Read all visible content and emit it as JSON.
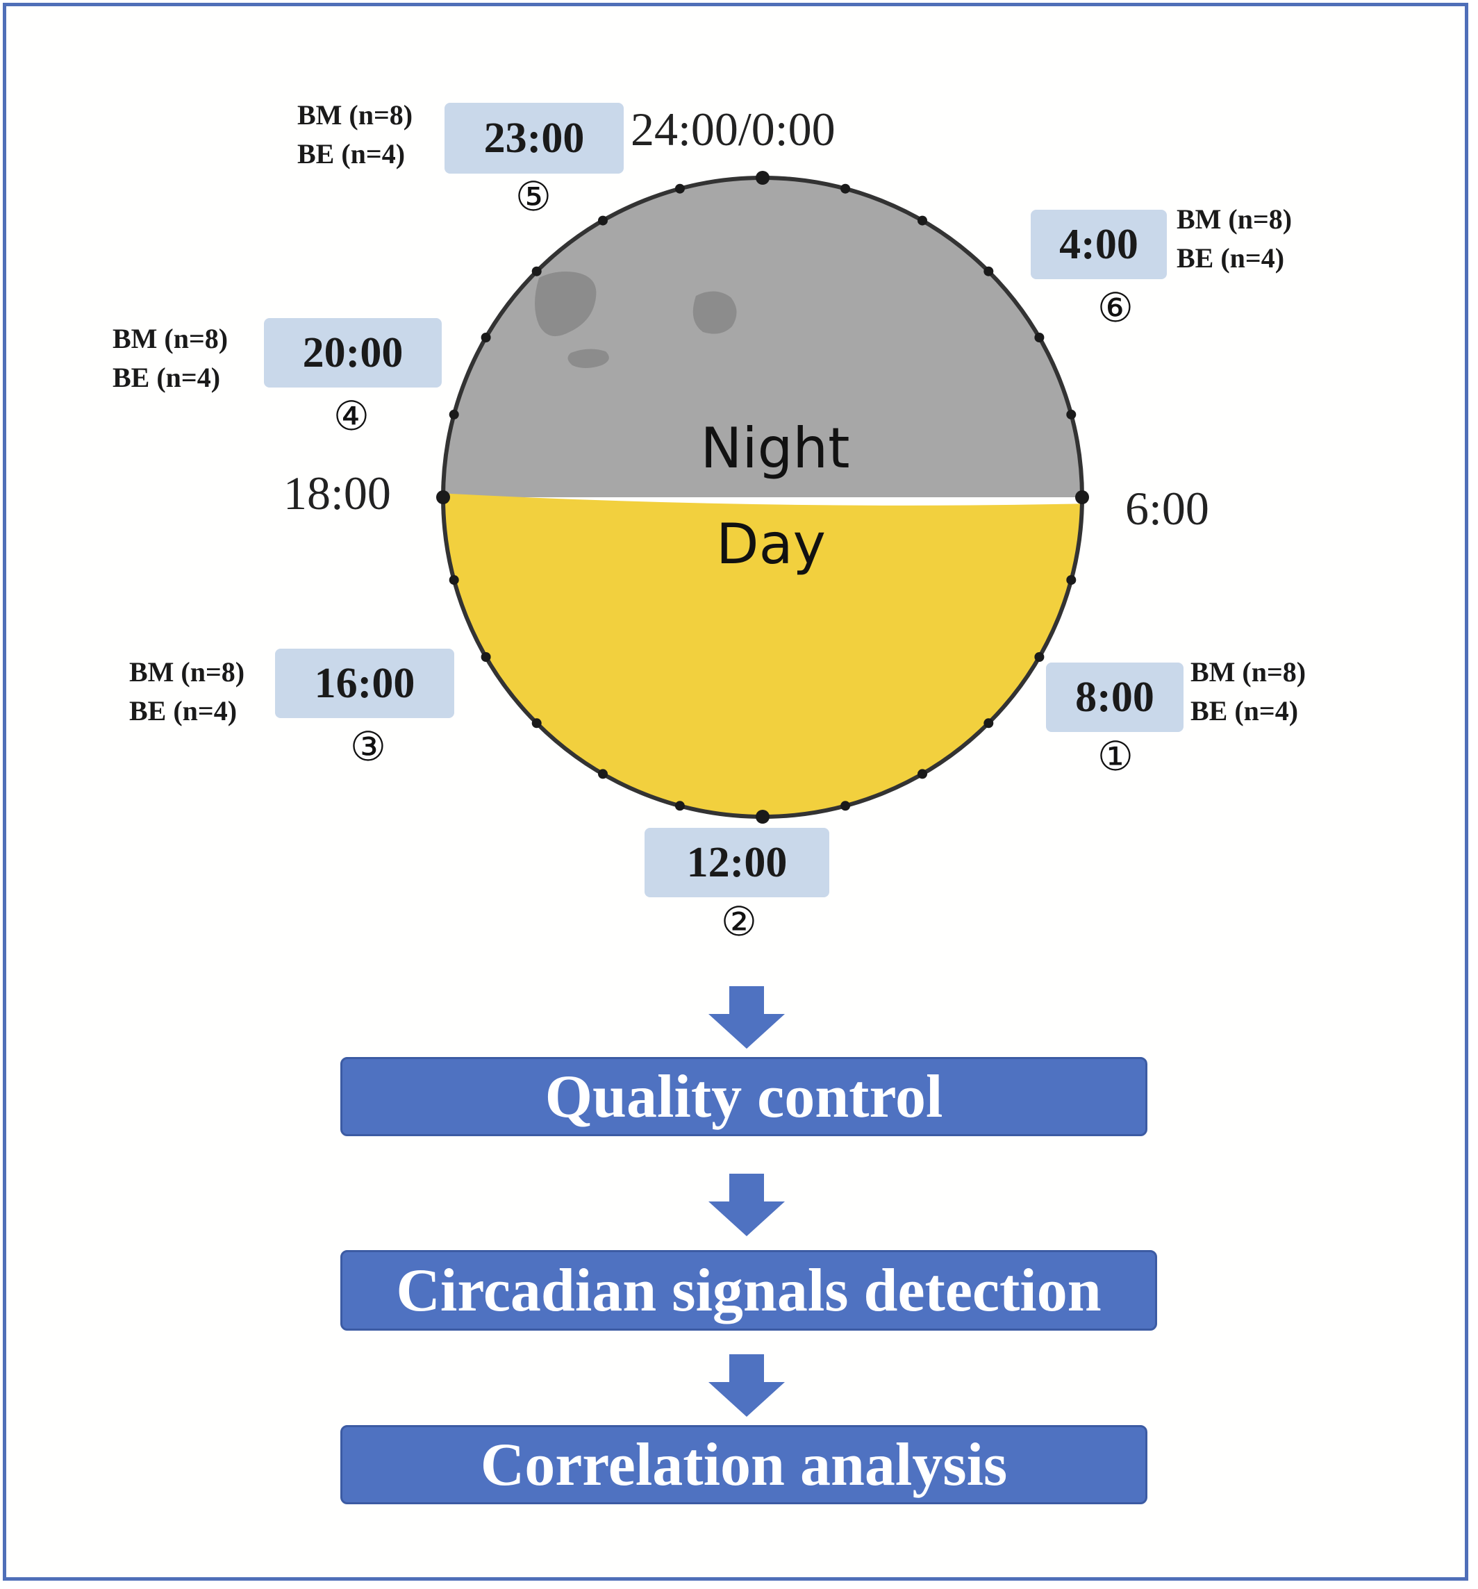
{
  "clock": {
    "night_label": "Night",
    "day_label": "Day",
    "axis_labels": {
      "top": "24:00/0:00",
      "left": "18:00",
      "right": "6:00"
    },
    "tick_count": 24,
    "colors": {
      "night": "#a7a7a7",
      "day": "#f2d03e",
      "spots": "#8c8c8c",
      "rim": "#333333"
    }
  },
  "timepoints": [
    {
      "time": "8:00",
      "order": "①",
      "groups": [
        "BM (n=8)",
        "BE (n=4)"
      ]
    },
    {
      "time": "12:00",
      "order": "②",
      "groups": []
    },
    {
      "time": "16:00",
      "order": "③",
      "groups": [
        "BM (n=8)",
        "BE (n=4)"
      ]
    },
    {
      "time": "20:00",
      "order": "④",
      "groups": [
        "BM (n=8)",
        "BE (n=4)"
      ]
    },
    {
      "time": "23:00",
      "order": "⑤",
      "groups": [
        "BM (n=8)",
        "BE (n=4)"
      ]
    },
    {
      "time": "4:00",
      "order": "⑥",
      "groups": [
        "BM (n=8)",
        "BE (n=4)"
      ]
    }
  ],
  "workflow": {
    "steps": [
      "Quality control",
      "Circadian signals detection",
      "Correlation analysis"
    ],
    "color": "#4f72c1"
  }
}
